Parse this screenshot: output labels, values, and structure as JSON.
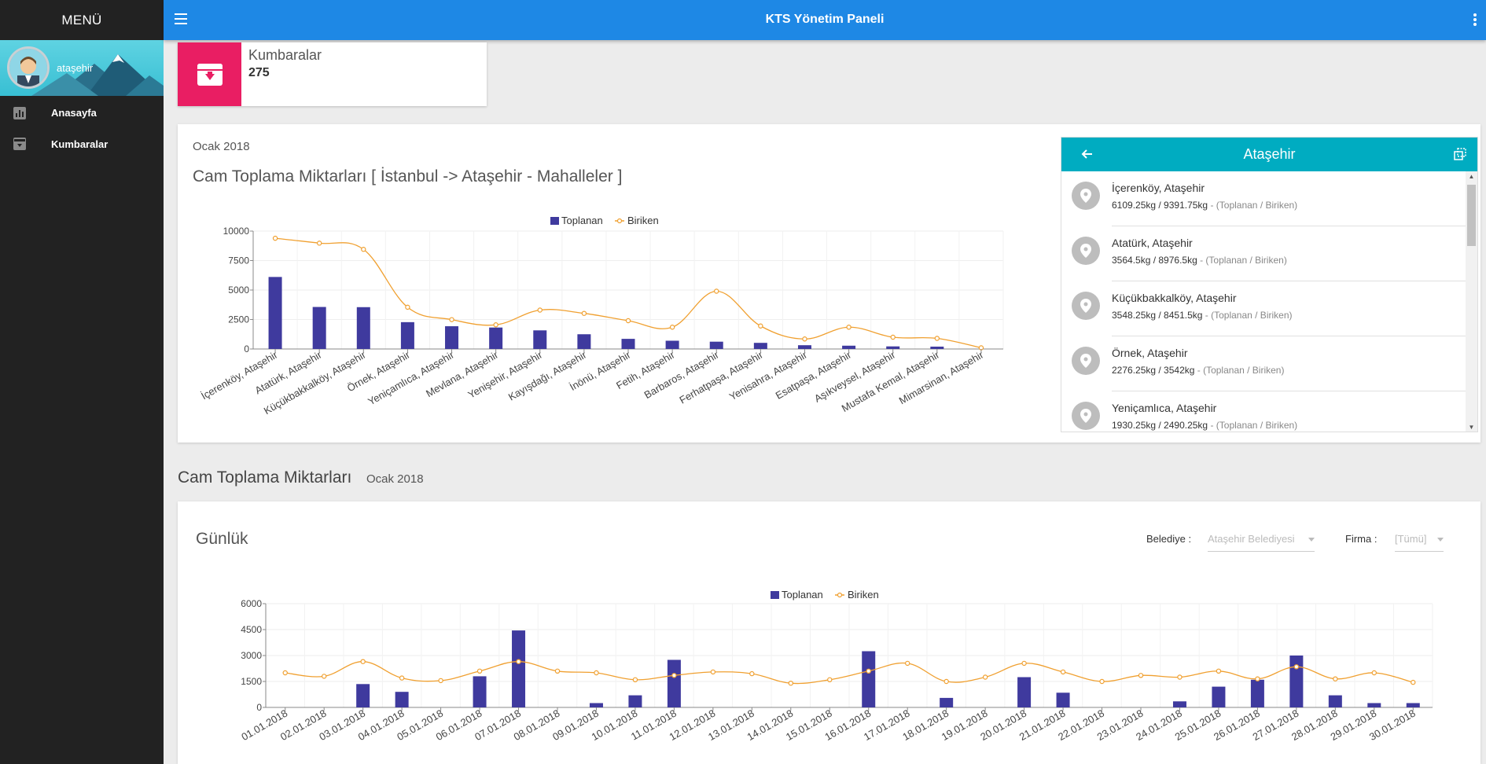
{
  "sidebar": {
    "menu_label": "MENÜ",
    "user": "ataşehir",
    "items": [
      {
        "label": "Anasayfa",
        "icon": "bar-chart-icon"
      },
      {
        "label": "Kumbaralar",
        "icon": "archive-icon"
      }
    ]
  },
  "header": {
    "title": "KTS Yönetim Paneli"
  },
  "stat": {
    "label": "Kumbaralar",
    "value": "275",
    "color": "#e91e63"
  },
  "card1": {
    "subtitle": "Ocak 2018",
    "title": "Cam Toplama Miktarları [ İstanbul -> Ataşehir - Mahalleler ]"
  },
  "panel": {
    "title": "Ataşehir",
    "suffix": " - (Toplanan / Biriken)",
    "items": [
      {
        "name": "İçerenköy, Ataşehir",
        "value": "6109.25kg / 9391.75kg"
      },
      {
        "name": "Atatürk, Ataşehir",
        "value": "3564.5kg / 8976.5kg"
      },
      {
        "name": "Küçükbakkalköy, Ataşehir",
        "value": "3548.25kg / 8451.5kg"
      },
      {
        "name": "Örnek, Ataşehir",
        "value": "2276.25kg / 3542kg"
      },
      {
        "name": "Yeniçamlıca, Ataşehir",
        "value": "1930.25kg / 2490.25kg"
      }
    ]
  },
  "section": {
    "title": "Cam Toplama Miktarları",
    "subtitle": "Ocak 2018"
  },
  "card2": {
    "title": "Günlük",
    "filters": [
      {
        "label": "Belediye :",
        "value": "Ataşehir Belediyesi"
      },
      {
        "label": "Firma :",
        "value": "[Tümü]"
      }
    ]
  },
  "colors": {
    "bar": "#3f3a9e",
    "line": "#f0a030",
    "accent": "#1e88e5",
    "panel": "#00acc1"
  },
  "chart_data": [
    {
      "type": "bar",
      "legend_position": "top-center",
      "grid": true,
      "categories": [
        "İçerenköy, Ataşehir",
        "Atatürk, Ataşehir",
        "Küçükbakkalköy, Ataşehir",
        "Örnek, Ataşehir",
        "Yeniçamlıca, Ataşehir",
        "Mevlana, Ataşehir",
        "Yenişehir, Ataşehir",
        "Kayışdağı, Ataşehir",
        "İnönü, Ataşehir",
        "Fetih, Ataşehir",
        "Barbaros, Ataşehir",
        "Ferhatpaşa, Ataşehir",
        "Yenisahra, Ataşehir",
        "Esatpaşa, Ataşehir",
        "Aşıkveysel, Ataşehir",
        "Mustafa Kemal, Ataşehir",
        "Mimarsinan, Ataşehir"
      ],
      "yticks": [
        0,
        2500,
        5000,
        7500,
        10000
      ],
      "ylim": [
        0,
        10000
      ],
      "series": [
        {
          "name": "Toplanan",
          "kind": "bar",
          "values": [
            6109,
            3564,
            3548,
            2276,
            1930,
            1820,
            1580,
            1250,
            860,
            700,
            620,
            520,
            320,
            280,
            220,
            200,
            0
          ]
        },
        {
          "name": "Biriken",
          "kind": "line",
          "values": [
            9391,
            8976,
            8451,
            3542,
            2490,
            2050,
            3300,
            3020,
            2400,
            1850,
            4900,
            1950,
            850,
            1850,
            1000,
            900,
            100
          ]
        }
      ]
    },
    {
      "type": "bar",
      "legend_position": "top-center",
      "grid": true,
      "categories": [
        "01.01.2018",
        "02.01.2018",
        "03.01.2018",
        "04.01.2018",
        "05.01.2018",
        "06.01.2018",
        "07.01.2018",
        "08.01.2018",
        "09.01.2018",
        "10.01.2018",
        "11.01.2018",
        "12.01.2018",
        "13.01.2018",
        "14.01.2018",
        "15.01.2018",
        "16.01.2018",
        "17.01.2018",
        "18.01.2018",
        "19.01.2018",
        "20.01.2018",
        "21.01.2018",
        "22.01.2018",
        "23.01.2018",
        "24.01.2018",
        "25.01.2018",
        "26.01.2018",
        "27.01.2018",
        "28.01.2018",
        "29.01.2018",
        "30.01.2018"
      ],
      "yticks": [
        0,
        1500,
        3000,
        4500,
        6000
      ],
      "ylim": [
        0,
        6000
      ],
      "series": [
        {
          "name": "Toplanan",
          "kind": "bar",
          "values": [
            0,
            0,
            1350,
            900,
            0,
            1800,
            4450,
            0,
            250,
            700,
            2750,
            0,
            0,
            0,
            0,
            3250,
            0,
            550,
            0,
            1750,
            850,
            0,
            0,
            350,
            1200,
            1600,
            3000,
            700,
            250,
            250
          ]
        },
        {
          "name": "Biriken",
          "kind": "line",
          "values": [
            2000,
            1800,
            2650,
            1700,
            1550,
            2100,
            2650,
            2100,
            2000,
            1600,
            1850,
            2050,
            1950,
            1400,
            1600,
            2100,
            2550,
            1500,
            1750,
            2550,
            2050,
            1500,
            1850,
            1750,
            2100,
            1650,
            2350,
            1650,
            2000,
            1450
          ]
        }
      ]
    }
  ]
}
